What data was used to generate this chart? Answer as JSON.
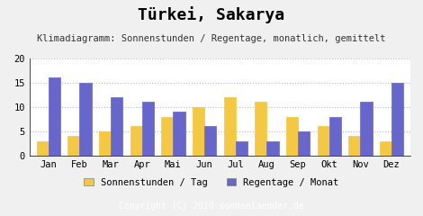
{
  "title": "Türkei, Sakarya",
  "subtitle": "Klimadiagramm: Sonnenstunden / Regentage, monatlich, gemittelt",
  "copyright": "Copyright (C) 2010 sonnenlaender.de",
  "months": [
    "Jan",
    "Feb",
    "Mar",
    "Apr",
    "Mai",
    "Jun",
    "Jul",
    "Aug",
    "Sep",
    "Okt",
    "Nov",
    "Dez"
  ],
  "sonnenstunden": [
    3,
    4,
    5,
    6,
    8,
    10,
    12,
    11,
    8,
    6,
    4,
    3
  ],
  "regentage": [
    16,
    15,
    12,
    11,
    9,
    6,
    3,
    3,
    5,
    8,
    11,
    15
  ],
  "bar_color_sun": "#f5c842",
  "bar_color_rain": "#6666cc",
  "bg_color": "#f0f0f0",
  "plot_bg_color": "#ffffff",
  "footer_bg": "#aaaaaa",
  "ylim": [
    0,
    20
  ],
  "yticks": [
    0,
    5,
    10,
    15,
    20
  ],
  "legend_sun": "Sonnenstunden / Tag",
  "legend_rain": "Regentage / Monat",
  "title_fontsize": 13,
  "subtitle_fontsize": 7.5,
  "axis_fontsize": 7.5,
  "legend_fontsize": 7.5,
  "copyright_fontsize": 7.0
}
